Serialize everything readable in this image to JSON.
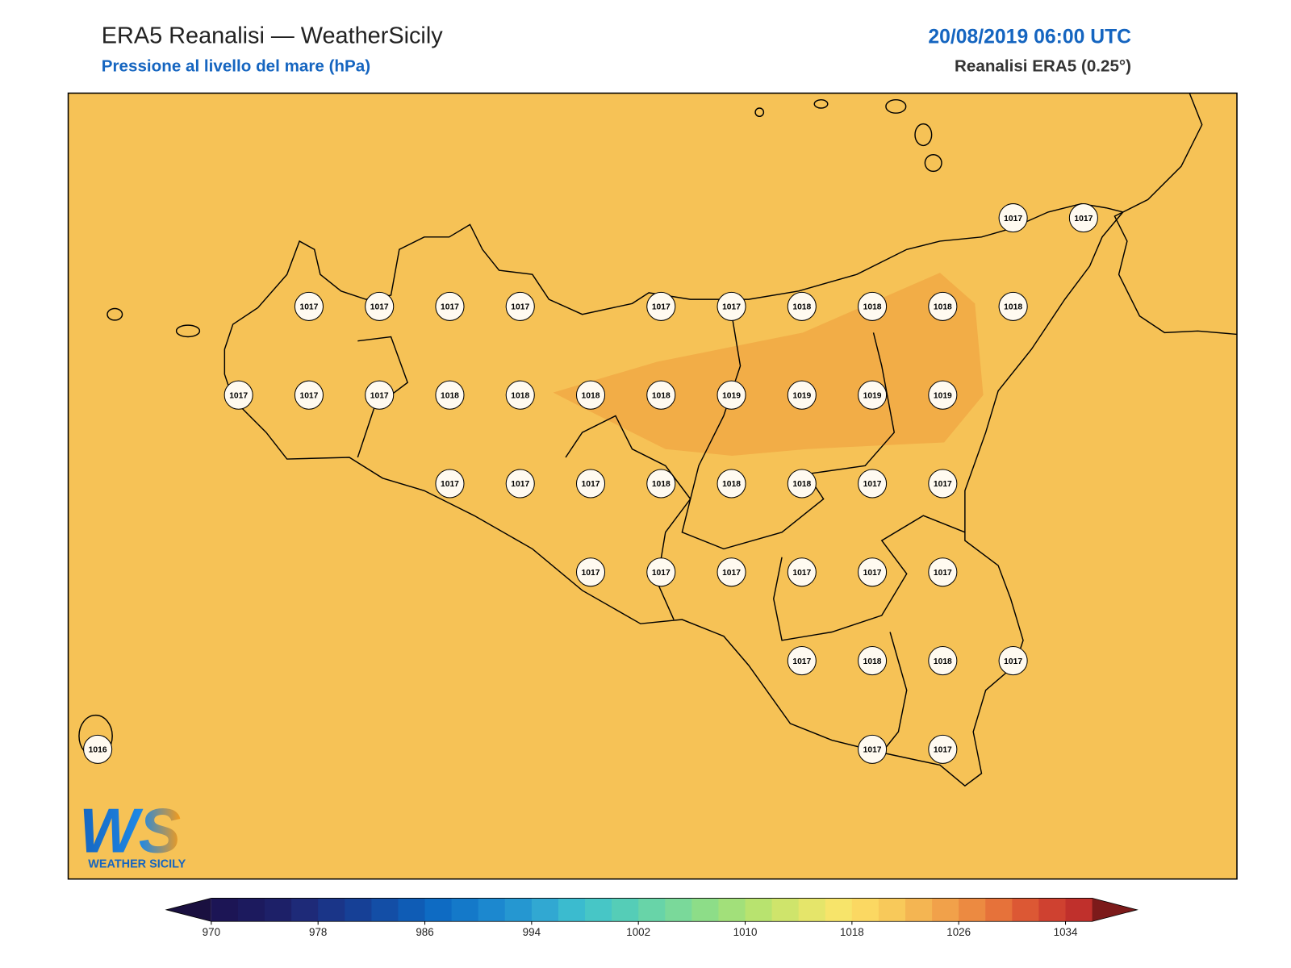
{
  "header": {
    "title": "ERA5 Reanalisi — WeatherSicily",
    "subtitle": "Pressione al livello del mare (hPa)",
    "date": "20/08/2019 06:00 UTC",
    "source": "Reanalisi ERA5 (0.25°)"
  },
  "stations": [
    [
      null,
      null,
      null,
      null,
      null,
      null,
      null,
      null,
      null,
      null,
      null,
      null,
      null,
      1017,
      1017
    ],
    [
      null,
      null,
      null,
      1017,
      1017,
      1017,
      1017,
      null,
      1017,
      1017,
      1018,
      1018,
      1018,
      1018,
      null
    ],
    [
      null,
      null,
      1017,
      1017,
      1017,
      1018,
      1018,
      1018,
      1018,
      1019,
      1019,
      1019,
      1019,
      null,
      null
    ],
    [
      null,
      null,
      null,
      null,
      null,
      1017,
      1017,
      1017,
      1018,
      1018,
      1018,
      1017,
      1017,
      null,
      null
    ],
    [
      null,
      null,
      null,
      null,
      null,
      null,
      null,
      1017,
      1017,
      1017,
      1017,
      1017,
      1017,
      null,
      null
    ],
    [
      null,
      null,
      null,
      null,
      null,
      null,
      null,
      null,
      null,
      null,
      1017,
      1018,
      1018,
      1017,
      null
    ],
    [
      1016,
      null,
      null,
      null,
      null,
      null,
      null,
      null,
      null,
      null,
      null,
      1017,
      1017,
      null,
      null
    ]
  ],
  "colorbar": {
    "lim": [
      970,
      1036
    ],
    "ticks": [
      970,
      978,
      986,
      994,
      1002,
      1010,
      1018,
      1026,
      1034
    ],
    "colors": [
      "#1c1555",
      "#1c1a5e",
      "#1d2068",
      "#1e2a78",
      "#1a3588",
      "#164096",
      "#134ea6",
      "#0f5cb5",
      "#0e6bc3",
      "#1479c9",
      "#1c88cf",
      "#2597d1",
      "#31a8d2",
      "#3bbbcf",
      "#47c6c6",
      "#55cdb7",
      "#68d4a8",
      "#7ad99a",
      "#8ddd88",
      "#a2e07a",
      "#b8e36f",
      "#cfe46b",
      "#e5e56a",
      "#f7e46a",
      "#fbd862",
      "#f8c95a",
      "#f4b552",
      "#f1a14a",
      "#ec8a41",
      "#e6723a",
      "#dc5834",
      "#cf4130",
      "#c0302c"
    ],
    "under_color": "#1a1040",
    "over_color": "#7c1a1a"
  },
  "logo": {
    "mark": "WS",
    "name": "WEATHER SICILY"
  }
}
